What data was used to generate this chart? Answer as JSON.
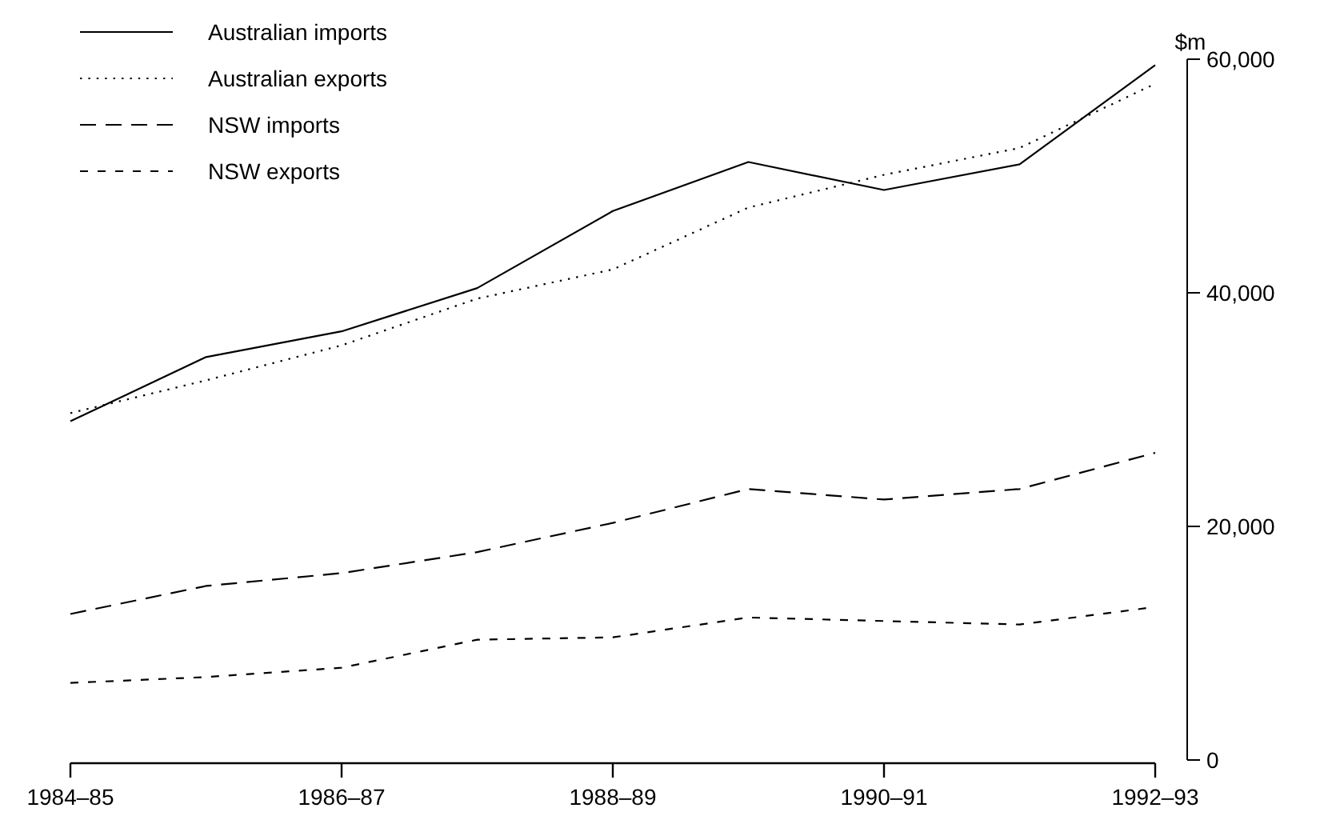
{
  "chart_data": {
    "type": "line",
    "ylabel": "$m",
    "categories": [
      "1984–85",
      null,
      "1986–87",
      null,
      "1988–89",
      null,
      "1990–91",
      null,
      "1992–93"
    ],
    "series": [
      {
        "name": "Australian imports",
        "color": "#000000",
        "line_style": "solid",
        "values": [
          29000,
          34500,
          36700,
          40400,
          47000,
          51200,
          48800,
          51000,
          59500
        ]
      },
      {
        "name": "Australian exports",
        "color": "#000000",
        "line_style": "dotted",
        "values": [
          29700,
          32500,
          35500,
          39500,
          42000,
          47300,
          50100,
          52400,
          57900
        ]
      },
      {
        "name": "NSW imports",
        "color": "#000000",
        "line_style": "dashed",
        "values": [
          12500,
          14900,
          16000,
          17800,
          20300,
          23200,
          22300,
          23200,
          26300
        ]
      },
      {
        "name": "NSW exports",
        "color": "#000000",
        "line_style": "dashed",
        "values": [
          6600,
          7100,
          7900,
          10300,
          10500,
          12200,
          11900,
          11600,
          13100
        ]
      }
    ],
    "ylim": [
      0,
      60000
    ],
    "yticks": [
      {
        "value": 0,
        "label": "0"
      },
      {
        "value": 20000,
        "label": "20,000"
      },
      {
        "value": 40000,
        "label": "40,000"
      },
      {
        "value": 60000,
        "label": "60,000"
      }
    ],
    "legend": "top left",
    "grid": false,
    "marker": "none"
  }
}
